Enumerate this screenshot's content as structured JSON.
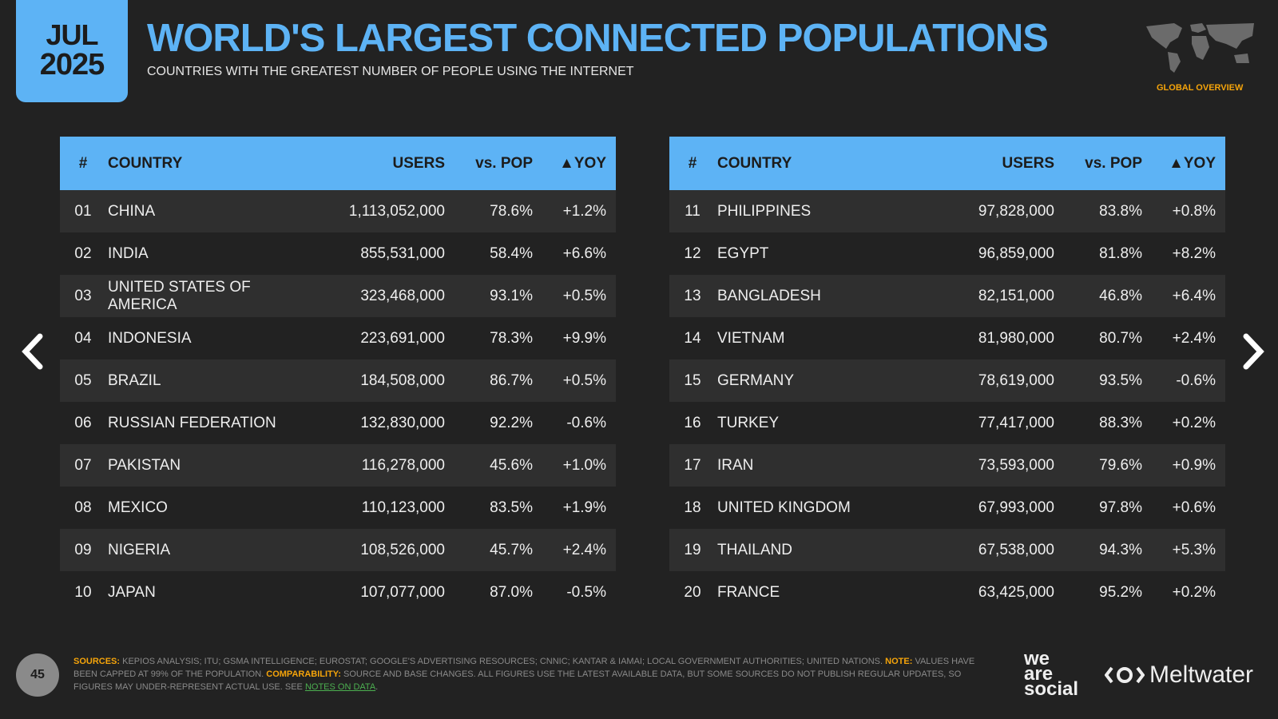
{
  "date": {
    "month": "JUL",
    "year": "2025"
  },
  "title": "WORLD'S LARGEST CONNECTED POPULATIONS",
  "subtitle": "COUNTRIES WITH THE GREATEST NUMBER OF PEOPLE USING THE INTERNET",
  "badge": "GLOBAL OVERVIEW",
  "columns": [
    "#",
    "COUNTRY",
    "USERS",
    "vs. POP",
    "▲YOY"
  ],
  "left_rows": [
    [
      "01",
      "CHINA",
      "1,113,052,000",
      "78.6%",
      "+1.2%"
    ],
    [
      "02",
      "INDIA",
      "855,531,000",
      "58.4%",
      "+6.6%"
    ],
    [
      "03",
      "UNITED STATES OF AMERICA",
      "323,468,000",
      "93.1%",
      "+0.5%"
    ],
    [
      "04",
      "INDONESIA",
      "223,691,000",
      "78.3%",
      "+9.9%"
    ],
    [
      "05",
      "BRAZIL",
      "184,508,000",
      "86.7%",
      "+0.5%"
    ],
    [
      "06",
      "RUSSIAN FEDERATION",
      "132,830,000",
      "92.2%",
      "-0.6%"
    ],
    [
      "07",
      "PAKISTAN",
      "116,278,000",
      "45.6%",
      "+1.0%"
    ],
    [
      "08",
      "MEXICO",
      "110,123,000",
      "83.5%",
      "+1.9%"
    ],
    [
      "09",
      "NIGERIA",
      "108,526,000",
      "45.7%",
      "+2.4%"
    ],
    [
      "10",
      "JAPAN",
      "107,077,000",
      "87.0%",
      "-0.5%"
    ]
  ],
  "right_rows": [
    [
      "11",
      "PHILIPPINES",
      "97,828,000",
      "83.8%",
      "+0.8%"
    ],
    [
      "12",
      "EGYPT",
      "96,859,000",
      "81.8%",
      "+8.2%"
    ],
    [
      "13",
      "BANGLADESH",
      "82,151,000",
      "46.8%",
      "+6.4%"
    ],
    [
      "14",
      "VIETNAM",
      "81,980,000",
      "80.7%",
      "+2.4%"
    ],
    [
      "15",
      "GERMANY",
      "78,619,000",
      "93.5%",
      "-0.6%"
    ],
    [
      "16",
      "TURKEY",
      "77,417,000",
      "88.3%",
      "+0.2%"
    ],
    [
      "17",
      "IRAN",
      "73,593,000",
      "79.6%",
      "+0.9%"
    ],
    [
      "18",
      "UNITED KINGDOM",
      "67,993,000",
      "97.8%",
      "+0.6%"
    ],
    [
      "19",
      "THAILAND",
      "67,538,000",
      "94.3%",
      "+5.3%"
    ],
    [
      "20",
      "FRANCE",
      "63,425,000",
      "95.2%",
      "+0.2%"
    ]
  ],
  "footer": {
    "sources_label": "SOURCES:",
    "sources": "KEPIOS ANALYSIS; ITU; GSMA INTELLIGENCE; EUROSTAT; GOOGLE'S ADVERTISING RESOURCES; CNNIC; KANTAR & IAMAI; LOCAL GOVERNMENT AUTHORITIES; UNITED NATIONS.",
    "note_label": "NOTE:",
    "note": "VALUES HAVE BEEN CAPPED AT 99% OF THE POPULATION.",
    "comparability_label": "COMPARABILITY:",
    "comparability": "SOURCE AND BASE CHANGES. ALL FIGURES USE THE LATEST AVAILABLE DATA, BUT SOME SOURCES DO NOT PUBLISH REGULAR UPDATES, SO FIGURES MAY UNDER-REPRESENT ACTUAL USE. SEE",
    "link": "NOTES ON DATA",
    "link_end": "."
  },
  "page_number": "45",
  "logos": {
    "we_are_social": "we are social",
    "meltwater": "Meltwater"
  },
  "colors": {
    "accent": "#5db3f5",
    "highlight": "#f5a40a",
    "background": "#222222"
  }
}
